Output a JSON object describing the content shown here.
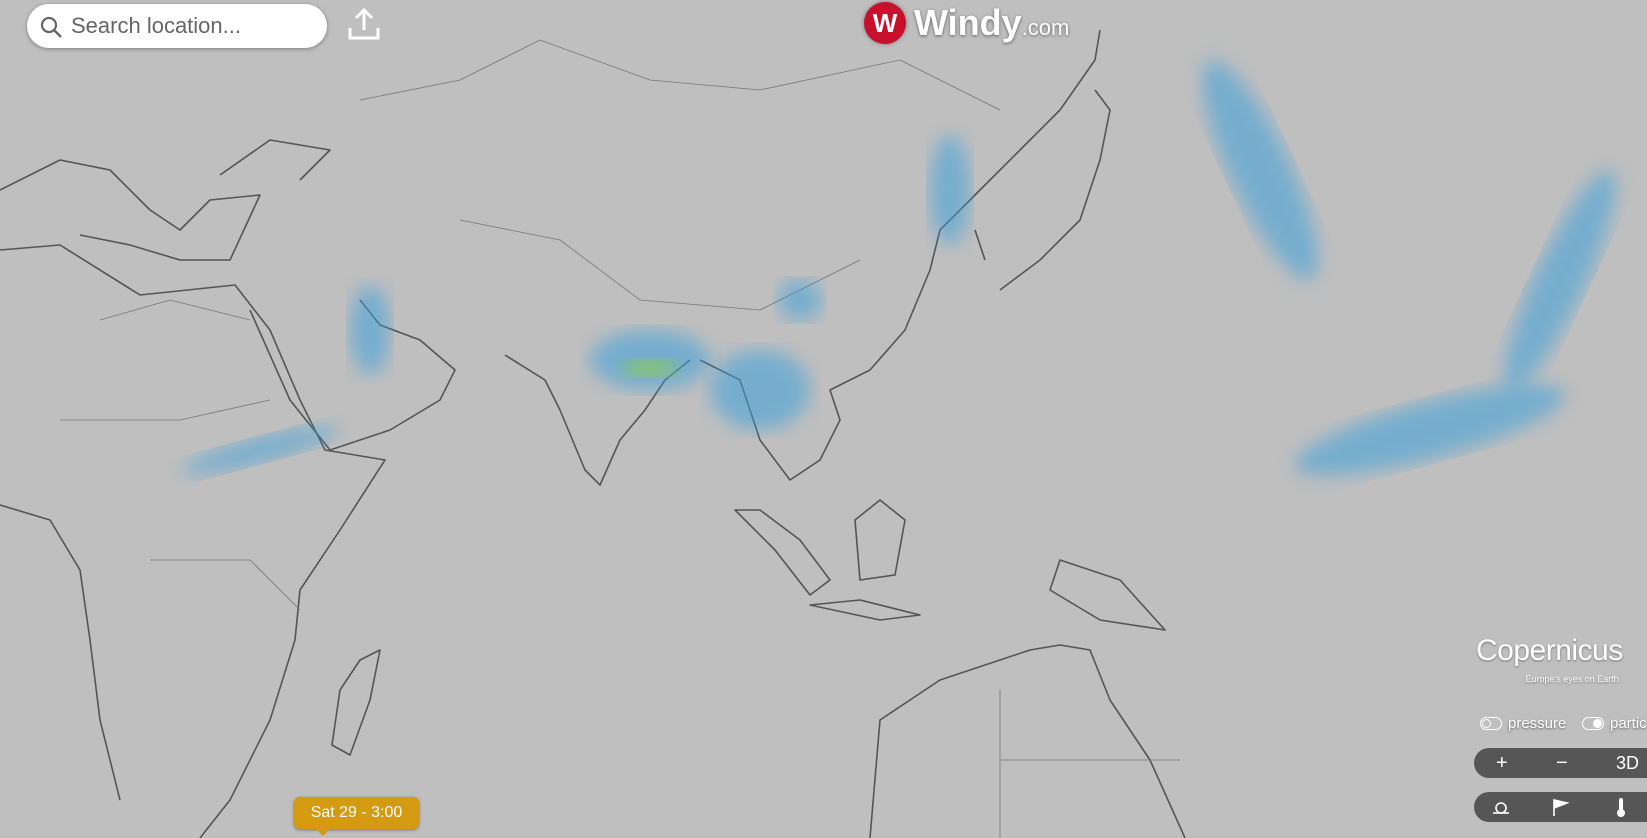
{
  "search": {
    "placeholder": "Search location..."
  },
  "logo": {
    "name": "Windy",
    "suffix": ".com"
  },
  "attribution": {
    "name": "Copernicus",
    "tagline": "Europe's eyes on Earth"
  },
  "toggles": [
    "pressure",
    "partic"
  ],
  "zoom": {
    "zoom_in": "+",
    "zoom_out": "−",
    "view_3d": "3D"
  },
  "timeline": {
    "current": "Sat 29 - 3:00"
  }
}
